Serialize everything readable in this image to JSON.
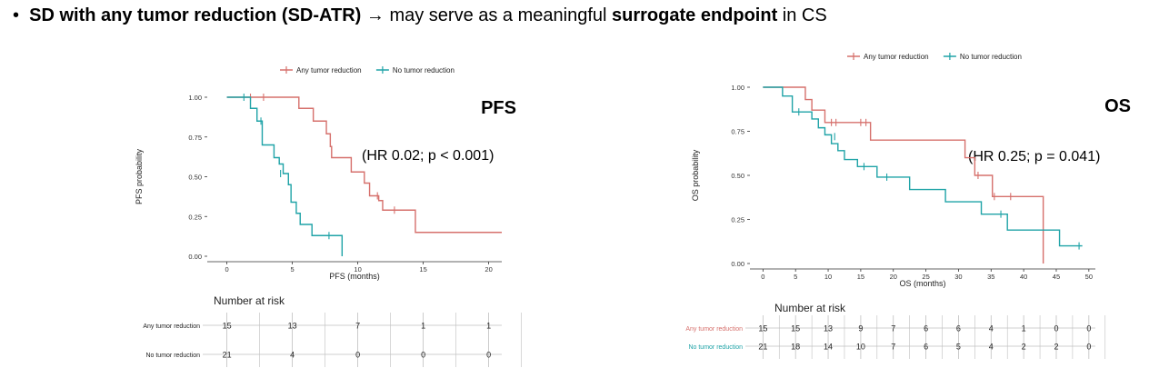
{
  "headline": {
    "bullet": "•",
    "part1": "SD with any tumor reduction (SD-ATR)",
    "arrow": " → may serve as a meaningful ",
    "part2": "surrogate endpoint",
    "part3": " in CS"
  },
  "colors": {
    "any": "#d6706c",
    "none": "#1fa3a7",
    "grid": "#bfbfbf"
  },
  "chart_data": [
    {
      "type": "line",
      "name": "PFS",
      "title": "PFS",
      "annotation": "(HR 0.02; p < 0.001)",
      "xlabel": "PFS (months)",
      "ylabel": "PFS probability",
      "xlim": [
        -1.5,
        21
      ],
      "ylim": [
        0,
        1
      ],
      "xticks": [
        0,
        5,
        10,
        15,
        20
      ],
      "yticks": [
        "0.00",
        "0.25",
        "0.50",
        "0.75",
        "1.00"
      ],
      "legend": [
        "Any tumor reduction",
        "No tumor reduction"
      ],
      "series": [
        {
          "name": "Any tumor reduction",
          "steps": [
            [
              0,
              1.0
            ],
            [
              5.5,
              0.93
            ],
            [
              6.6,
              0.85
            ],
            [
              7.6,
              0.77
            ],
            [
              7.9,
              0.69
            ],
            [
              8.0,
              0.62
            ],
            [
              9.5,
              0.53
            ],
            [
              10.5,
              0.46
            ],
            [
              10.9,
              0.38
            ],
            [
              11.6,
              0.35
            ],
            [
              11.9,
              0.29
            ],
            [
              14.4,
              0.15
            ],
            [
              21,
              0.15
            ]
          ],
          "censors": [
            [
              1.8,
              1.0
            ],
            [
              2.8,
              1.0
            ],
            [
              11.5,
              0.38
            ],
            [
              12.8,
              0.29
            ]
          ]
        },
        {
          "name": "No tumor reduction",
          "steps": [
            [
              0,
              1.0
            ],
            [
              1.8,
              0.93
            ],
            [
              2.3,
              0.85
            ],
            [
              2.7,
              0.7
            ],
            [
              3.6,
              0.62
            ],
            [
              4.0,
              0.58
            ],
            [
              4.3,
              0.52
            ],
            [
              4.7,
              0.45
            ],
            [
              4.9,
              0.34
            ],
            [
              5.3,
              0.27
            ],
            [
              5.6,
              0.2
            ],
            [
              6.5,
              0.13
            ],
            [
              8.8,
              0.0
            ]
          ],
          "censors": [
            [
              1.3,
              1.0
            ],
            [
              2.6,
              0.85
            ],
            [
              4.1,
              0.52
            ],
            [
              7.8,
              0.13
            ]
          ]
        }
      ],
      "risk_table": {
        "title": "Number at risk",
        "rows": [
          {
            "label": "Any tumor reduction",
            "values": [
              "15",
              "13",
              "7",
              "1",
              "1"
            ]
          },
          {
            "label": "No tumor reduction",
            "values": [
              "21",
              "4",
              "0",
              "0",
              "0"
            ]
          }
        ]
      }
    },
    {
      "type": "line",
      "name": "OS",
      "title": "OS",
      "annotation": "(HR 0.25; p = 0.041)",
      "xlabel": "OS (months)",
      "ylabel": "OS probability",
      "xlim": [
        -2,
        51
      ],
      "ylim": [
        0,
        1
      ],
      "xticks": [
        0,
        5,
        10,
        15,
        20,
        25,
        30,
        35,
        40,
        45,
        50
      ],
      "yticks": [
        "0.00",
        "0.25",
        "0.50",
        "0.75",
        "1.00"
      ],
      "legend": [
        "Any tumor reduction",
        "No tumor reduction"
      ],
      "series": [
        {
          "name": "Any tumor reduction",
          "steps": [
            [
              0,
              1.0
            ],
            [
              6.5,
              0.93
            ],
            [
              7.5,
              0.87
            ],
            [
              9.5,
              0.8
            ],
            [
              16.5,
              0.7
            ],
            [
              31.0,
              0.6
            ],
            [
              32.5,
              0.5
            ],
            [
              35.2,
              0.38
            ],
            [
              43.0,
              0.0
            ]
          ],
          "censors": [
            [
              10.5,
              0.8
            ],
            [
              11.2,
              0.8
            ],
            [
              15.0,
              0.8
            ],
            [
              15.8,
              0.8
            ],
            [
              33.0,
              0.5
            ],
            [
              35.5,
              0.38
            ],
            [
              38.0,
              0.38
            ]
          ]
        },
        {
          "name": "No tumor reduction",
          "steps": [
            [
              0,
              1.0
            ],
            [
              3.0,
              0.95
            ],
            [
              4.5,
              0.86
            ],
            [
              7.5,
              0.82
            ],
            [
              8.5,
              0.77
            ],
            [
              9.5,
              0.73
            ],
            [
              10.5,
              0.68
            ],
            [
              11.5,
              0.64
            ],
            [
              12.5,
              0.59
            ],
            [
              14.5,
              0.55
            ],
            [
              17.5,
              0.49
            ],
            [
              22.5,
              0.42
            ],
            [
              28.0,
              0.35
            ],
            [
              33.5,
              0.28
            ],
            [
              37.5,
              0.19
            ],
            [
              45.5,
              0.1
            ],
            [
              49,
              0.1
            ]
          ],
          "censors": [
            [
              5.5,
              0.86
            ],
            [
              11.0,
              0.72
            ],
            [
              15.5,
              0.55
            ],
            [
              19.0,
              0.49
            ],
            [
              36.5,
              0.28
            ],
            [
              48.5,
              0.1
            ]
          ]
        }
      ],
      "risk_table": {
        "title": "Number at risk",
        "rows": [
          {
            "label": "Any tumor reduction",
            "values": [
              "15",
              "15",
              "13",
              "9",
              "7",
              "6",
              "6",
              "4",
              "1",
              "0",
              "0"
            ]
          },
          {
            "label": "No tumor reduction",
            "values": [
              "21",
              "18",
              "14",
              "10",
              "7",
              "6",
              "5",
              "4",
              "2",
              "2",
              "0"
            ]
          }
        ]
      }
    }
  ]
}
